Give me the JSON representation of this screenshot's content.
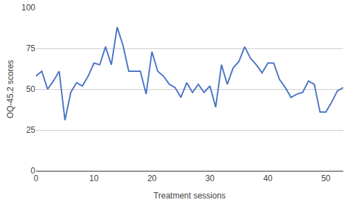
{
  "chart_data": {
    "type": "line",
    "x_label": "Treatment sessions",
    "y_label": "OQ-45.2 scores",
    "x": [
      0,
      1,
      2,
      3,
      4,
      5,
      6,
      7,
      8,
      9,
      10,
      11,
      12,
      13,
      14,
      15,
      16,
      17,
      18,
      19,
      20,
      21,
      22,
      23,
      24,
      25,
      26,
      27,
      28,
      29,
      30,
      31,
      32,
      33,
      34,
      35,
      36,
      37,
      38,
      39,
      40,
      41,
      42,
      43,
      44,
      45,
      46,
      47,
      48,
      49,
      50,
      51,
      52,
      53
    ],
    "values": [
      58,
      61,
      50,
      55,
      61,
      31,
      48,
      54,
      52,
      58,
      66,
      65,
      76,
      65,
      88,
      77,
      61,
      61,
      61,
      47,
      73,
      61,
      58,
      53,
      51,
      45,
      54,
      48,
      53,
      48,
      52,
      39,
      65,
      53,
      63,
      67,
      76,
      69,
      65,
      60,
      66,
      66,
      56,
      51,
      45,
      47,
      48,
      55,
      53,
      36,
      36,
      42,
      49,
      51
    ],
    "color": "#4a74c4",
    "xlim": [
      0,
      53
    ],
    "xticks": [
      0,
      10,
      20,
      30,
      40,
      50
    ],
    "ylim": [
      0,
      100
    ],
    "yticks": [
      0,
      25,
      50,
      75,
      100
    ],
    "grid": true
  }
}
